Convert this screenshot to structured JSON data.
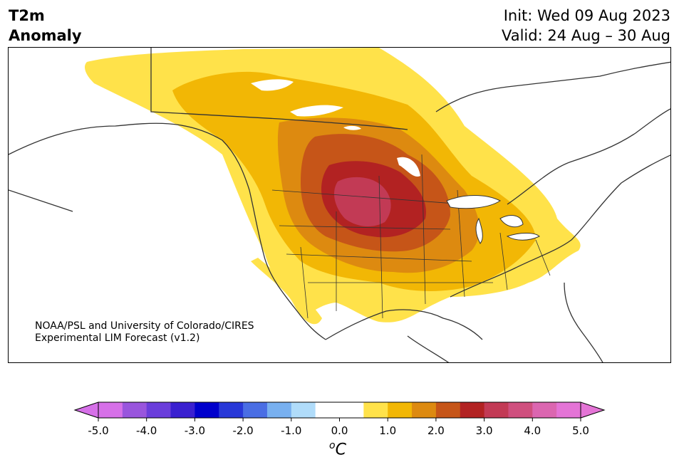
{
  "header": {
    "title_line1": "T2m",
    "title_line2": "Anomaly",
    "init_text": "Init: Wed 09 Aug 2023",
    "valid_text": "Valid: 24 Aug – 30 Aug"
  },
  "credit": {
    "line1": "NOAA/PSL and University of Colorado/CIRES",
    "line2": "Experimental LIM Forecast (v1.2)"
  },
  "colorbar": {
    "unit_base": "C",
    "unit_sup": "o",
    "colors": [
      "#d670e8",
      "#9955dd",
      "#6a3ddb",
      "#3a20d0",
      "#0000cc",
      "#2838d8",
      "#4a6ee4",
      "#78b0f0",
      "#b0dcfa",
      "#ffffff",
      "#ffffff",
      "#ffe24a",
      "#f2b705",
      "#dd8a10",
      "#c65518",
      "#b22222",
      "#c23a55",
      "#cf4f7e",
      "#db66b0",
      "#e474d6"
    ],
    "ticks": [
      "-5.0",
      "-4.0",
      "-3.0",
      "-2.0",
      "-1.0",
      "0.0",
      "1.0",
      "2.0",
      "3.0",
      "4.0",
      "5.0"
    ]
  },
  "legend_colors": {
    "c1": "#ffe24a",
    "c2": "#f2b705",
    "c3": "#dd8a10",
    "c4": "#c65518",
    "c5": "#b22222",
    "c6": "#c23a55",
    "coast": "#333333"
  }
}
